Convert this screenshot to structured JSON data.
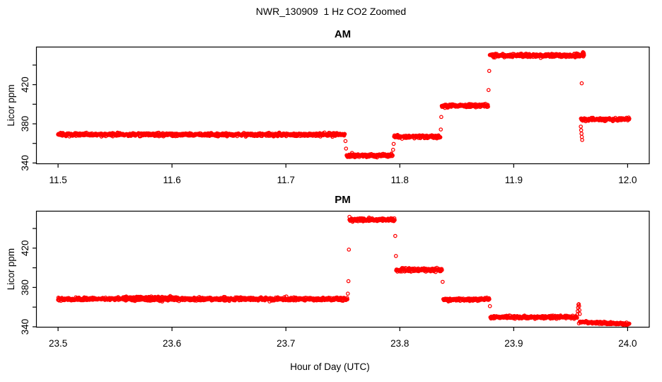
{
  "page": {
    "title": "NWR_130909  1 Hz CO2 Zoomed",
    "x_axis_label": "Hour of Day (UTC)",
    "background": "#ffffff",
    "accent_color": "#ff0000",
    "axis_color": "#000000"
  },
  "chart_data": [
    {
      "type": "scatter",
      "title": "AM",
      "ylabel": "Licor ppm",
      "xlabel": "",
      "marker": "open-circle",
      "color": "#ff0000",
      "sample_rate_hz": 1,
      "grid": false,
      "xlim": [
        11.481,
        12.019
      ],
      "ylim": [
        339.2,
        458.4
      ],
      "xticks": [
        11.5,
        11.6,
        11.7,
        11.8,
        11.9,
        12.0
      ],
      "yticks": [
        340,
        360,
        380,
        400,
        420,
        440
      ],
      "ytick_labels": [
        340,
        380,
        420
      ],
      "segments": [
        {
          "t0": 11.5,
          "t1": 11.7517,
          "v": 369.0,
          "sd": 0.75
        },
        {
          "t0": 11.7533,
          "t1": 11.7937,
          "v": 347.6,
          "sd": 0.8
        },
        {
          "t0": 11.795,
          "t1": 11.8356,
          "v": 367.0,
          "sd": 0.7
        },
        {
          "t0": 11.8368,
          "t1": 11.8775,
          "v": 398.4,
          "sd": 0.8
        },
        {
          "t0": 11.879,
          "t1": 11.9617,
          "v": 449.8,
          "sd": 0.85
        },
        {
          "t0": 11.959,
          "t1": 12.0015,
          "v": 384.6,
          "sd": 0.7
        }
      ],
      "extra_points": [
        [
          11.7523,
          362.4
        ],
        [
          11.7528,
          354.7
        ],
        [
          11.7941,
          353.5
        ],
        [
          11.7946,
          359.5
        ],
        [
          11.836,
          374.2
        ],
        [
          11.8364,
          387.0
        ],
        [
          11.8779,
          414.5
        ],
        [
          11.8785,
          434.0
        ],
        [
          11.9597,
          421.4
        ],
        [
          11.9589,
          377.2
        ],
        [
          11.9592,
          373.5
        ],
        [
          11.9595,
          370.0
        ],
        [
          11.9598,
          366.6
        ],
        [
          11.9601,
          363.5
        ],
        [
          11.9603,
          452.0
        ],
        [
          11.9608,
          453.2
        ],
        [
          11.9613,
          452.6
        ],
        [
          11.9616,
          451.5
        ]
      ]
    },
    {
      "type": "scatter",
      "title": "PM",
      "ylabel": "Licor ppm",
      "xlabel": "Hour of Day (UTC)",
      "marker": "open-circle",
      "color": "#ff0000",
      "sample_rate_hz": 1,
      "grid": false,
      "xlim": [
        23.481,
        24.019
      ],
      "ylim": [
        339.6,
        457.6
      ],
      "xticks": [
        23.5,
        23.6,
        23.7,
        23.8,
        23.9,
        24.0
      ],
      "yticks": [
        340,
        360,
        380,
        400,
        420,
        440
      ],
      "ytick_labels": [
        340,
        380,
        420
      ],
      "segments": [
        {
          "t0": 23.5,
          "t1": 23.754,
          "v": 368.2,
          "sd": 0.75
        },
        {
          "t0": 23.556,
          "t1": 23.604,
          "v": 369.4,
          "sd": 0.6
        },
        {
          "t0": 23.7558,
          "t1": 23.7955,
          "v": 448.8,
          "sd": 0.85
        },
        {
          "t0": 23.7968,
          "t1": 23.837,
          "v": 397.9,
          "sd": 0.8
        },
        {
          "t0": 23.8382,
          "t1": 23.8786,
          "v": 367.8,
          "sd": 0.7
        },
        {
          "t0": 23.8795,
          "t1": 23.9556,
          "v": 349.8,
          "sd": 0.7
        },
        {
          "t0": 23.958,
          "t1": 24.0015,
          "v0": 344.9,
          "v1": 342.7,
          "sd": 0.6
        }
      ],
      "extra_points": [
        [
          23.7544,
          373.7
        ],
        [
          23.7549,
          386.4
        ],
        [
          23.7553,
          418.5
        ],
        [
          23.7558,
          451.8
        ],
        [
          23.796,
          432.4
        ],
        [
          23.7966,
          412.0
        ],
        [
          23.8376,
          385.7
        ],
        [
          23.8791,
          361.0
        ],
        [
          23.9559,
          352.5
        ],
        [
          23.9562,
          356.0
        ],
        [
          23.9565,
          359.5
        ],
        [
          23.9568,
          362.5
        ],
        [
          23.9571,
          363.0
        ],
        [
          23.9574,
          361.0
        ],
        [
          23.9577,
          357.0
        ],
        [
          23.958,
          353.0
        ],
        [
          23.9572,
          343.5
        ]
      ]
    }
  ]
}
